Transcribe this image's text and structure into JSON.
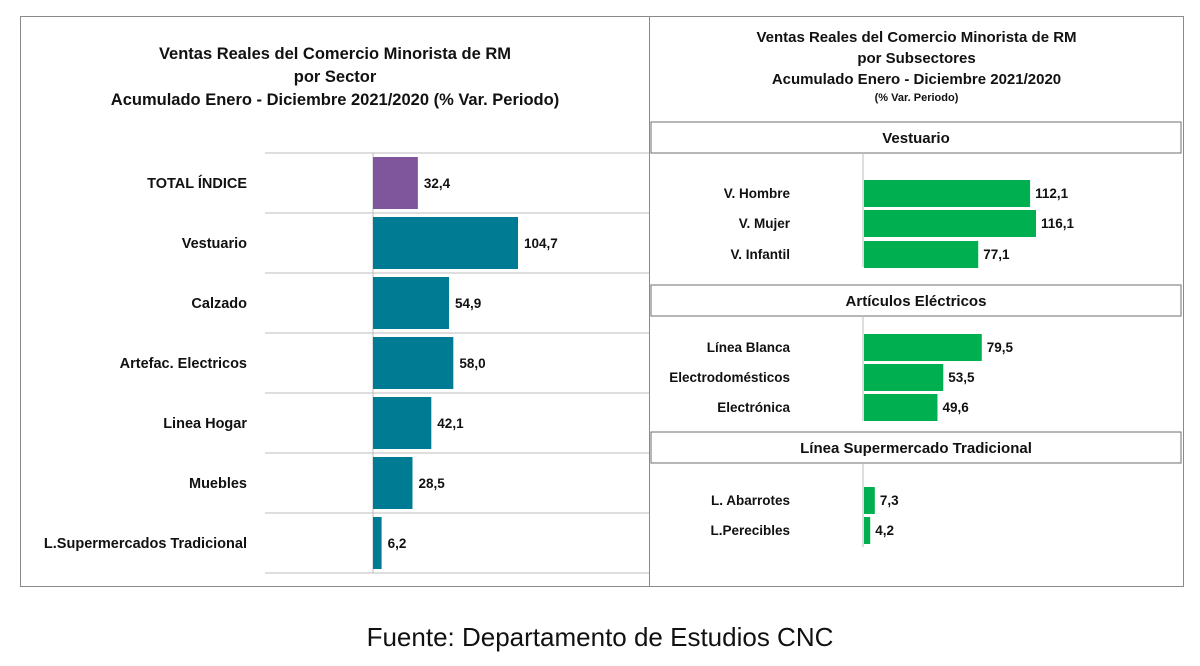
{
  "chart_data": [
    {
      "type": "bar",
      "orientation": "horizontal",
      "title_lines": [
        "Ventas Reales del Comercio Minorista de RM",
        "por Sector",
        "Acumulado Enero - Diciembre 2021/2020 (% Var. Periodo)"
      ],
      "categories": [
        "TOTAL ÍNDICE",
        "Vestuario",
        "Calzado",
        "Artefac. Electricos",
        "Linea Hogar",
        "Muebles",
        "L.Supermercados Tradicional"
      ],
      "values": [
        32.4,
        104.7,
        54.9,
        58.0,
        42.1,
        28.5,
        6.2
      ],
      "value_labels": [
        "32,4",
        "104,7",
        "54,9",
        "58,0",
        "42,1",
        "28,5",
        "6,2"
      ],
      "bar_colors": [
        "#7f559c",
        "#007b94",
        "#007b94",
        "#007b94",
        "#007b94",
        "#007b94",
        "#007b94"
      ],
      "grid": true
    },
    {
      "type": "bar",
      "orientation": "horizontal",
      "title_lines": [
        "Ventas Reales del Comercio Minorista de RM",
        "por Subsectores",
        "Acumulado Enero - Diciembre 2021/2020"
      ],
      "subtitle": "(% Var. Periodo)",
      "bar_color": "#00b050",
      "groups": [
        {
          "name": "Vestuario",
          "categories": [
            "V. Hombre",
            "V. Mujer",
            "V. Infantil"
          ],
          "values": [
            112.1,
            116.1,
            77.1
          ],
          "value_labels": [
            "112,1",
            "116,1",
            "77,1"
          ]
        },
        {
          "name": "Artículos Eléctricos",
          "categories": [
            "Línea Blanca",
            "Electrodomésticos",
            "Electrónica"
          ],
          "values": [
            79.5,
            53.5,
            49.6
          ],
          "value_labels": [
            "79,5",
            "53,5",
            "49,6"
          ]
        },
        {
          "name": "Línea  Supermercado Tradicional",
          "categories": [
            "L. Abarrotes",
            "L.Perecibles"
          ],
          "values": [
            7.3,
            4.2
          ],
          "value_labels": [
            "7,3",
            "4,2"
          ]
        }
      ]
    }
  ],
  "source": "Fuente: Departamento de Estudios CNC"
}
